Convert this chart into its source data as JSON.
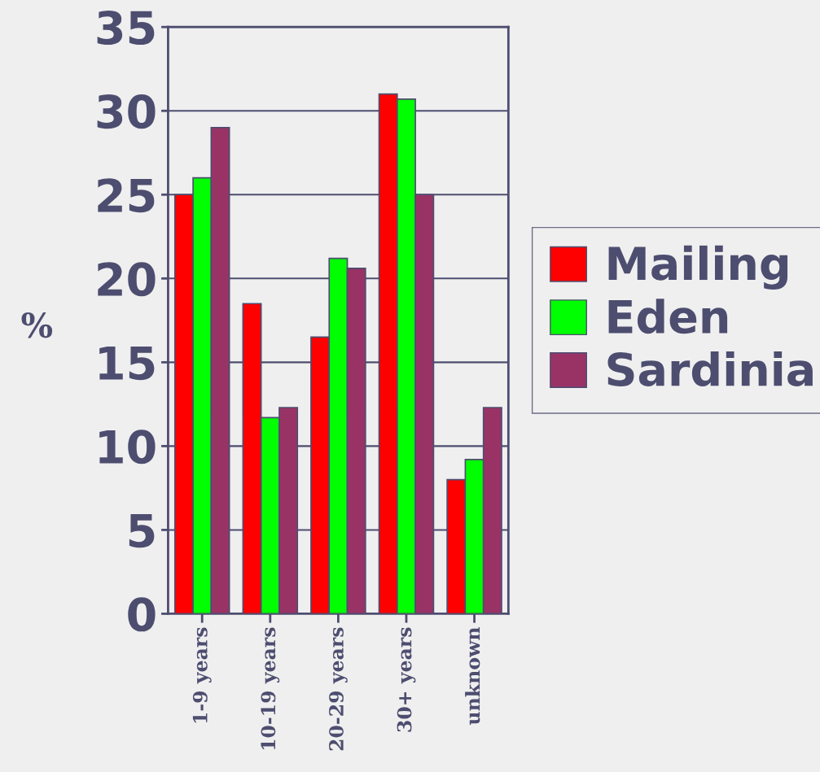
{
  "chart_data": {
    "type": "bar",
    "ylabel": "%",
    "categories": [
      "1-9 years",
      "10-19 years",
      "20-29 years",
      "30+ years",
      "unknown"
    ],
    "series": [
      {
        "name": "Mailing",
        "color": "#ff0000",
        "values": [
          25,
          18.5,
          16.5,
          31,
          8
        ]
      },
      {
        "name": "Eden",
        "color": "#00ff00",
        "values": [
          26,
          11.7,
          21.2,
          30.7,
          9.2
        ]
      },
      {
        "name": "Sardinia",
        "color": "#993366",
        "values": [
          29,
          12.3,
          20.6,
          25,
          12.3
        ]
      }
    ],
    "ylim": [
      0,
      35
    ],
    "yticks": [
      0,
      5,
      10,
      15,
      20,
      25,
      30,
      35
    ],
    "grid": "y",
    "legend": "right"
  }
}
